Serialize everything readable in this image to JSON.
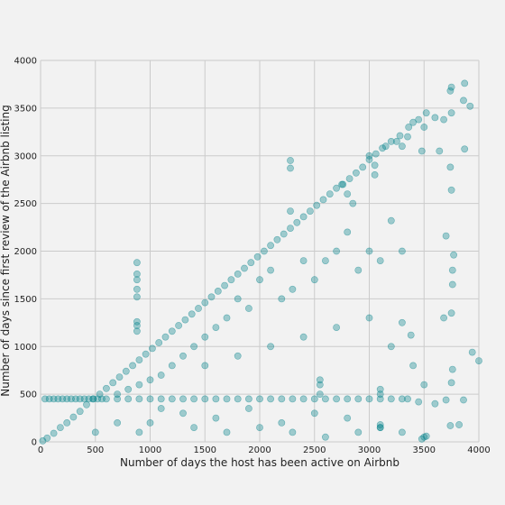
{
  "chart_data": {
    "type": "scatter",
    "title": "",
    "xlabel": "Number of days the host has been active on Airbnb",
    "ylabel": "Number of days since first review of the Airbnb listing",
    "xlim": [
      0,
      4000
    ],
    "ylim": [
      0,
      4000
    ],
    "x_ticks": [
      "0",
      "500",
      "1000",
      "1500",
      "2000",
      "2500",
      "3000",
      "3500",
      "4000"
    ],
    "y_ticks": [
      "0",
      "500",
      "1000",
      "1500",
      "2000",
      "2500",
      "3000",
      "3500",
      "4000"
    ],
    "grid": true,
    "legend": "none",
    "colors": {
      "point": "#00818a",
      "background": "#f2f2f2",
      "grid": "#cbcbcb"
    },
    "series": [
      {
        "values_note_free": true,
        "points": [
          [
            20,
            10
          ],
          [
            60,
            40
          ],
          [
            120,
            90
          ],
          [
            180,
            150
          ],
          [
            240,
            200
          ],
          [
            300,
            260
          ],
          [
            360,
            320
          ],
          [
            420,
            390
          ],
          [
            480,
            450
          ],
          [
            540,
            500
          ],
          [
            600,
            560
          ],
          [
            660,
            620
          ],
          [
            720,
            680
          ],
          [
            780,
            740
          ],
          [
            840,
            800
          ],
          [
            900,
            860
          ],
          [
            960,
            920
          ],
          [
            1020,
            980
          ],
          [
            1080,
            1040
          ],
          [
            1140,
            1100
          ],
          [
            1200,
            1160
          ],
          [
            1260,
            1220
          ],
          [
            1320,
            1280
          ],
          [
            1380,
            1340
          ],
          [
            1440,
            1400
          ],
          [
            1500,
            1460
          ],
          [
            1560,
            1520
          ],
          [
            1620,
            1580
          ],
          [
            1680,
            1640
          ],
          [
            1740,
            1700
          ],
          [
            1800,
            1760
          ],
          [
            1860,
            1820
          ],
          [
            1920,
            1880
          ],
          [
            1980,
            1940
          ],
          [
            2040,
            2000
          ],
          [
            2100,
            2060
          ],
          [
            2160,
            2120
          ],
          [
            2220,
            2180
          ],
          [
            2280,
            2240
          ],
          [
            2340,
            2300
          ],
          [
            2400,
            2360
          ],
          [
            2460,
            2420
          ],
          [
            2520,
            2480
          ],
          [
            2580,
            2540
          ],
          [
            2640,
            2600
          ],
          [
            2700,
            2660
          ],
          [
            2760,
            2700
          ],
          [
            2820,
            2760
          ],
          [
            2880,
            2820
          ],
          [
            2940,
            2880
          ],
          [
            3000,
            2960
          ],
          [
            3060,
            3020
          ],
          [
            3120,
            3080
          ],
          [
            3200,
            3150
          ],
          [
            3280,
            3210
          ],
          [
            3360,
            3300
          ],
          [
            3450,
            3380
          ],
          [
            3520,
            3450
          ],
          [
            3740,
            3680
          ],
          [
            3750,
            3720
          ],
          [
            3870,
            3760
          ],
          [
            3920,
            3520
          ],
          [
            3860,
            3580
          ],
          [
            3750,
            3450
          ],
          [
            3680,
            3380
          ],
          [
            3480,
            3050
          ],
          [
            3640,
            3050
          ],
          [
            3870,
            3070
          ],
          [
            3740,
            2880
          ],
          [
            3750,
            2640
          ],
          [
            3700,
            2160
          ],
          [
            3770,
            1960
          ],
          [
            3760,
            1800
          ],
          [
            3760,
            1650
          ],
          [
            3750,
            1350
          ],
          [
            3680,
            1300
          ],
          [
            3760,
            760
          ],
          [
            3750,
            620
          ],
          [
            3700,
            440
          ],
          [
            3860,
            440
          ],
          [
            3940,
            940
          ],
          [
            4000,
            850
          ],
          [
            3820,
            180
          ],
          [
            3740,
            170
          ],
          [
            3520,
            60
          ],
          [
            3480,
            30
          ],
          [
            3450,
            420
          ],
          [
            3350,
            450
          ],
          [
            3300,
            1250
          ],
          [
            3380,
            1120
          ],
          [
            40,
            450
          ],
          [
            80,
            450
          ],
          [
            120,
            450
          ],
          [
            160,
            450
          ],
          [
            200,
            450
          ],
          [
            240,
            450
          ],
          [
            280,
            450
          ],
          [
            320,
            450
          ],
          [
            360,
            450
          ],
          [
            400,
            450
          ],
          [
            440,
            450
          ],
          [
            480,
            450
          ],
          [
            520,
            450
          ],
          [
            560,
            450
          ],
          [
            600,
            450
          ],
          [
            700,
            450
          ],
          [
            800,
            450
          ],
          [
            900,
            450
          ],
          [
            1000,
            450
          ],
          [
            1100,
            450
          ],
          [
            1200,
            450
          ],
          [
            1300,
            450
          ],
          [
            1400,
            450
          ],
          [
            1500,
            450
          ],
          [
            1600,
            450
          ],
          [
            1700,
            450
          ],
          [
            1800,
            450
          ],
          [
            1900,
            450
          ],
          [
            2000,
            450
          ],
          [
            2100,
            450
          ],
          [
            2200,
            450
          ],
          [
            2300,
            450
          ],
          [
            2400,
            450
          ],
          [
            2500,
            450
          ],
          [
            2600,
            450
          ],
          [
            2700,
            450
          ],
          [
            2800,
            450
          ],
          [
            2900,
            450
          ],
          [
            3000,
            450
          ],
          [
            3100,
            450
          ],
          [
            3200,
            450
          ],
          [
            3300,
            450
          ],
          [
            880,
            1880
          ],
          [
            880,
            1760
          ],
          [
            880,
            1700
          ],
          [
            880,
            1600
          ],
          [
            880,
            1520
          ],
          [
            880,
            1260
          ],
          [
            880,
            1220
          ],
          [
            880,
            1160
          ],
          [
            2280,
            2950
          ],
          [
            2280,
            2870
          ],
          [
            2280,
            2420
          ],
          [
            3200,
            2320
          ],
          [
            3300,
            2000
          ],
          [
            3100,
            1900
          ],
          [
            3000,
            2000
          ],
          [
            2900,
            1800
          ],
          [
            2800,
            2200
          ],
          [
            2700,
            2000
          ],
          [
            2600,
            1900
          ],
          [
            2500,
            1700
          ],
          [
            2400,
            1900
          ],
          [
            2300,
            1600
          ],
          [
            2200,
            1500
          ],
          [
            2100,
            1800
          ],
          [
            2000,
            1700
          ],
          [
            1900,
            1400
          ],
          [
            1800,
            1500
          ],
          [
            1700,
            1300
          ],
          [
            1600,
            1200
          ],
          [
            1500,
            1100
          ],
          [
            1400,
            1000
          ],
          [
            1300,
            900
          ],
          [
            1200,
            800
          ],
          [
            1100,
            700
          ],
          [
            1000,
            650
          ],
          [
            900,
            600
          ],
          [
            800,
            550
          ],
          [
            700,
            500
          ],
          [
            1500,
            800
          ],
          [
            1800,
            900
          ],
          [
            2100,
            1000
          ],
          [
            2400,
            1100
          ],
          [
            2700,
            1200
          ],
          [
            3000,
            1300
          ],
          [
            3200,
            1000
          ],
          [
            3400,
            800
          ],
          [
            3500,
            600
          ],
          [
            3600,
            400
          ],
          [
            1000,
            200
          ],
          [
            1300,
            300
          ],
          [
            1600,
            250
          ],
          [
            1900,
            350
          ],
          [
            2200,
            200
          ],
          [
            2500,
            300
          ],
          [
            2800,
            250
          ],
          [
            3100,
            150
          ],
          [
            3300,
            100
          ],
          [
            3500,
            50
          ],
          [
            500,
            100
          ],
          [
            700,
            200
          ],
          [
            900,
            100
          ],
          [
            1100,
            350
          ],
          [
            1400,
            150
          ],
          [
            1700,
            100
          ],
          [
            2000,
            150
          ],
          [
            2300,
            100
          ],
          [
            2600,
            50
          ],
          [
            2900,
            100
          ],
          [
            2550,
            600
          ],
          [
            2550,
            500
          ],
          [
            2550,
            650
          ],
          [
            3100,
            550
          ],
          [
            3100,
            500
          ],
          [
            3100,
            180
          ],
          [
            3100,
            150
          ],
          [
            2750,
            2700
          ],
          [
            2800,
            2600
          ],
          [
            2850,
            2500
          ],
          [
            3050,
            2900
          ],
          [
            3050,
            2800
          ],
          [
            3000,
            3000
          ],
          [
            3300,
            3100
          ],
          [
            3350,
            3200
          ],
          [
            3400,
            3350
          ],
          [
            3250,
            3150
          ],
          [
            3150,
            3100
          ],
          [
            3500,
            3300
          ],
          [
            3600,
            3400
          ]
        ]
      }
    ]
  }
}
